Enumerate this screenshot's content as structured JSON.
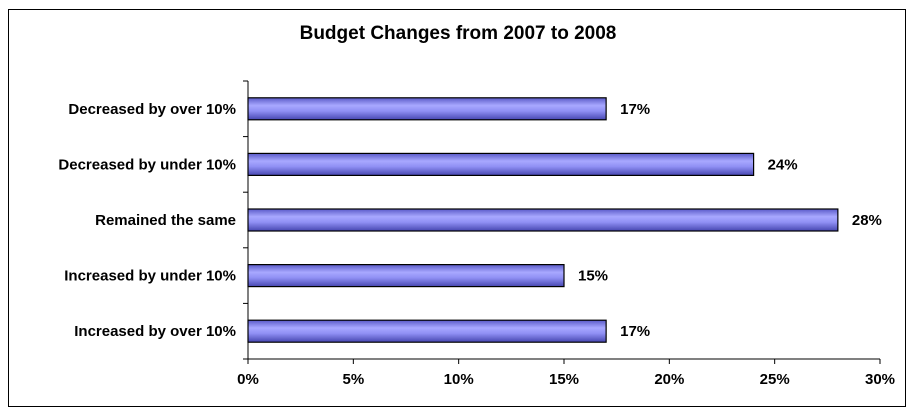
{
  "chart_data": {
    "type": "bar",
    "orientation": "horizontal",
    "title": "Budget Changes from 2007 to 2008",
    "xlabel": "",
    "ylabel": "",
    "categories": [
      "Decreased by over 10%",
      "Decreased by under 10%",
      "Remained the same",
      "Increased by under 10%",
      "Increased by over 10%"
    ],
    "values": [
      17,
      24,
      28,
      15,
      17
    ],
    "data_labels": [
      "17%",
      "24%",
      "28%",
      "15%",
      "17%"
    ],
    "xlim": [
      0,
      30
    ],
    "x_ticks": [
      0,
      5,
      10,
      15,
      20,
      25,
      30
    ],
    "x_tick_labels": [
      "0%",
      "5%",
      "10%",
      "15%",
      "20%",
      "25%",
      "30%"
    ],
    "grid": false,
    "legend": "none",
    "bar_color": "#8080f0",
    "bar_edge_color": "#000000"
  }
}
